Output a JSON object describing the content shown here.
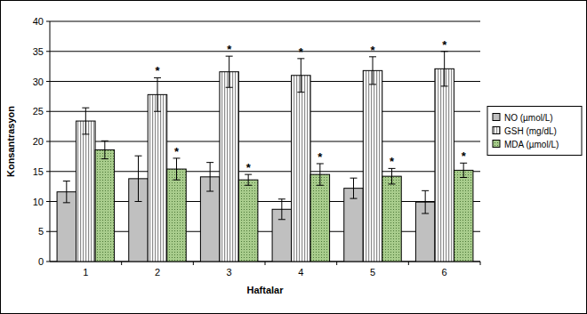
{
  "chart_data": {
    "type": "bar",
    "x_label": "Haftalar",
    "y_label": "Konsantrasyon",
    "categories": [
      "1",
      "2",
      "3",
      "4",
      "5",
      "6"
    ],
    "series": [
      {
        "name": "NO (µmol/L)",
        "color": "#c0c0c0",
        "values": [
          11.6,
          13.8,
          14.1,
          8.7,
          12.2,
          9.9
        ],
        "errors": [
          1.8,
          3.8,
          2.4,
          1.7,
          1.7,
          1.9
        ]
      },
      {
        "name": "GSH (mg/dL)",
        "color": "#d8d8d8",
        "values": [
          23.4,
          27.8,
          31.6,
          31.0,
          31.8,
          32.1
        ],
        "errors": [
          2.2,
          2.8,
          2.6,
          2.8,
          2.3,
          2.9
        ],
        "annotations": [
          null,
          "*",
          "*",
          "*",
          "*",
          "*"
        ]
      },
      {
        "name": "MDA (µmol/L)",
        "color": "#a8cc8c",
        "values": [
          18.6,
          15.4,
          13.6,
          14.5,
          14.2,
          15.2
        ],
        "errors": [
          1.5,
          1.8,
          0.9,
          1.8,
          1.3,
          1.2
        ],
        "annotations": [
          null,
          "*",
          "*",
          "*",
          "*",
          "*"
        ]
      }
    ],
    "ylim": [
      0,
      40
    ],
    "yticks": [
      0,
      5,
      10,
      15,
      20,
      25,
      30,
      35,
      40
    ],
    "grid": true,
    "legend": "right"
  }
}
